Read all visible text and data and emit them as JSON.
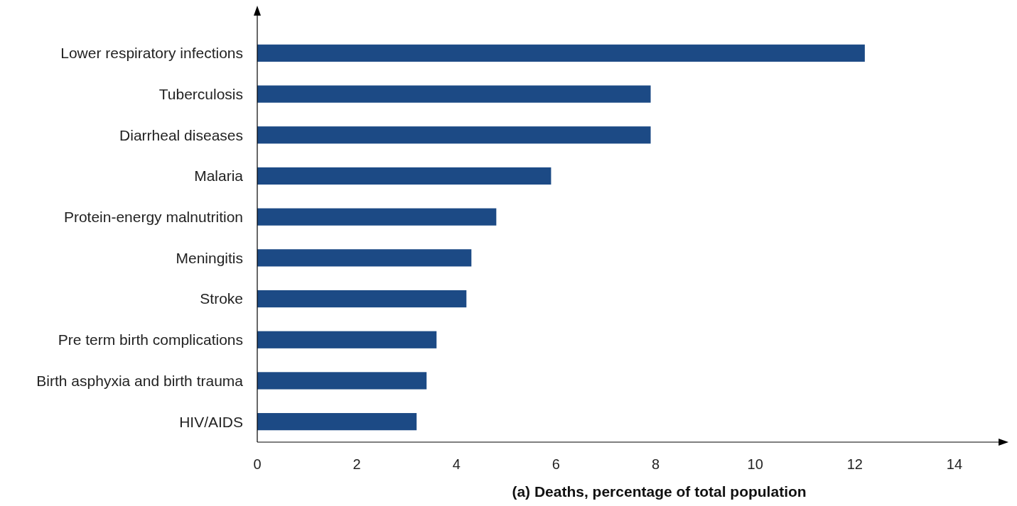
{
  "chart_data": {
    "type": "bar",
    "orientation": "horizontal",
    "xlabel": "(a) Deaths, percentage of total population",
    "categories": [
      "Lower respiratory infections",
      "Tuberculosis",
      "Diarrheal diseases",
      "Malaria",
      "Protein-energy malnutrition",
      "Meningitis",
      "Stroke",
      "Pre term birth complications",
      "Birth asphyxia and birth trauma",
      "HIV/AIDS"
    ],
    "values": [
      12.2,
      7.9,
      7.9,
      5.9,
      4.8,
      4.3,
      4.2,
      3.6,
      3.4,
      3.2
    ],
    "color": "#1c4a85",
    "xlim": [
      0,
      15
    ],
    "xticks": [
      0,
      2,
      4,
      6,
      8,
      10,
      12,
      14
    ]
  }
}
